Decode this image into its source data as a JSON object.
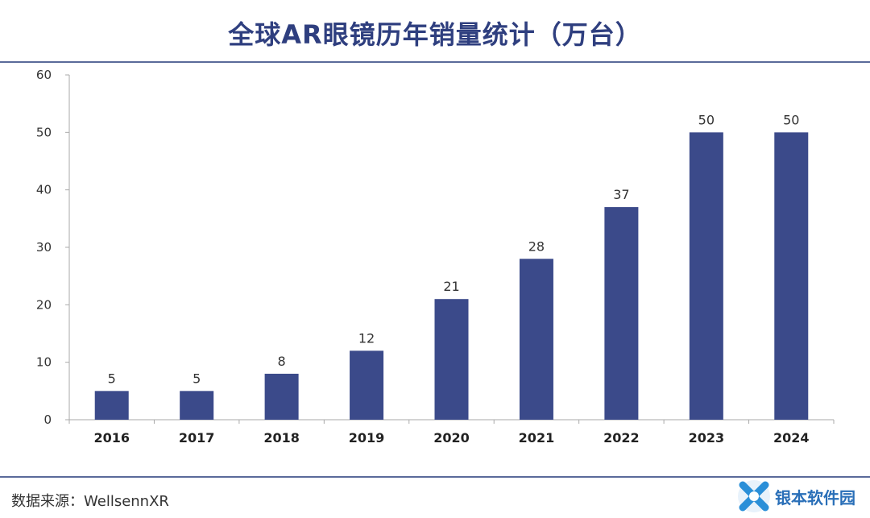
{
  "title": "全球AR眼镜历年销量统计（万台）",
  "source": "数据来源：WellsennXR",
  "watermark": {
    "text": "银本软件园"
  },
  "colors": {
    "bar": "#3b4a8a",
    "title": "#2f3f7f",
    "rule": "#5a6a9a",
    "axis": "#aaaaaa"
  },
  "chart_data": {
    "type": "bar",
    "categories": [
      "2016",
      "2017",
      "2018",
      "2019",
      "2020",
      "2021",
      "2022",
      "2023",
      "2024"
    ],
    "values": [
      5,
      5,
      8,
      12,
      21,
      28,
      37,
      50,
      50
    ],
    "title": "全球AR眼镜历年销量统计（万台）",
    "xlabel": "",
    "ylabel": "",
    "ylim": [
      0,
      60
    ],
    "yticks": [
      0,
      10,
      20,
      30,
      40,
      50,
      60
    ],
    "grid": false,
    "data_labels": true
  }
}
